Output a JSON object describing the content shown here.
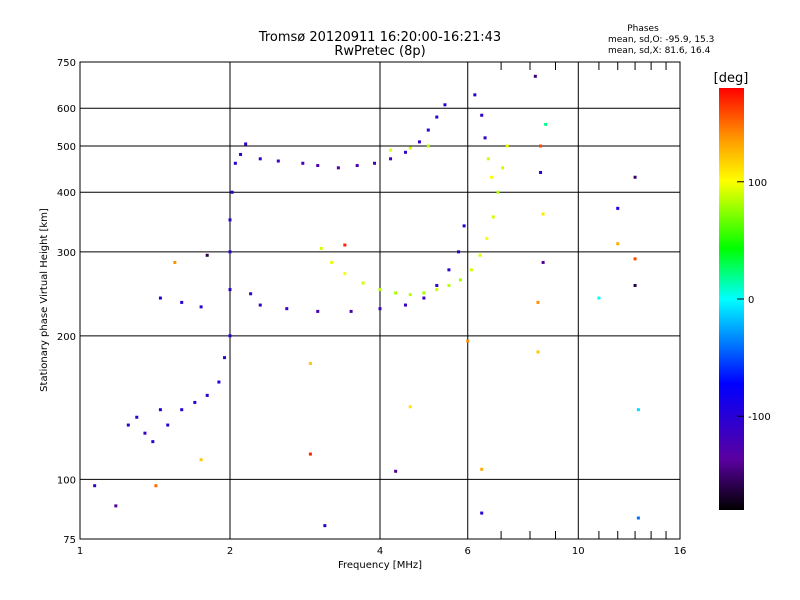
{
  "chart_data": {
    "type": "scatter",
    "title": "Tromsø 20120911 16:20:00-16:21:43",
    "subtitle": "RwPretec (8p)",
    "xlabel": "Frequency [MHz]",
    "ylabel": "Stationary phase Virtual Height [km]",
    "x_scale": "log",
    "y_scale": "log",
    "xlim": [
      1,
      16
    ],
    "ylim": [
      75,
      750
    ],
    "x_ticks": [
      1,
      2,
      4,
      6,
      10,
      16
    ],
    "y_ticks": [
      75,
      100,
      200,
      300,
      400,
      500,
      600,
      750
    ],
    "grid": true,
    "stats": {
      "title": "Phases",
      "line1": "mean, sd,O: -95.9, 15.3",
      "line2": "mean, sd,X:  81.6, 16.4"
    },
    "colorbar": {
      "label": "[deg]",
      "range": [
        -180,
        180
      ],
      "ticks": [
        100,
        0,
        -100
      ]
    },
    "series": [
      {
        "points": [
          [
            1.07,
            97,
            -110
          ],
          [
            1.25,
            130,
            -105
          ],
          [
            1.3,
            135,
            -100
          ],
          [
            1.35,
            125,
            -110
          ],
          [
            1.4,
            120,
            -105
          ],
          [
            1.45,
            140,
            -100
          ],
          [
            1.5,
            130,
            -105
          ],
          [
            1.6,
            140,
            -100
          ],
          [
            1.7,
            145,
            -95
          ],
          [
            1.8,
            150,
            -100
          ],
          [
            1.9,
            160,
            -100
          ],
          [
            1.95,
            180,
            -105
          ],
          [
            2.0,
            200,
            -100
          ],
          [
            2.0,
            250,
            -105
          ],
          [
            2.0,
            300,
            -100
          ],
          [
            2.0,
            350,
            -105
          ],
          [
            2.02,
            400,
            -100
          ],
          [
            2.05,
            460,
            -100
          ],
          [
            2.1,
            480,
            -105
          ],
          [
            2.15,
            505,
            -110
          ],
          [
            2.3,
            470,
            -110
          ],
          [
            2.5,
            465,
            -115
          ],
          [
            2.8,
            460,
            -120
          ],
          [
            3.0,
            455,
            -125
          ],
          [
            3.3,
            450,
            -130
          ],
          [
            3.6,
            455,
            -125
          ],
          [
            3.9,
            460,
            -120
          ],
          [
            4.2,
            470,
            -115
          ],
          [
            4.5,
            485,
            -110
          ],
          [
            4.8,
            510,
            -110
          ],
          [
            5.0,
            540,
            -105
          ],
          [
            5.2,
            575,
            -100
          ],
          [
            5.4,
            610,
            -100
          ],
          [
            6.2,
            640,
            -100
          ],
          [
            6.4,
            580,
            -105
          ],
          [
            6.5,
            520,
            -110
          ],
          [
            1.45,
            240,
            -100
          ],
          [
            1.6,
            235,
            -100
          ],
          [
            1.75,
            230,
            -105
          ],
          [
            2.2,
            245,
            -110
          ],
          [
            2.3,
            232,
            -110
          ],
          [
            2.6,
            228,
            -115
          ],
          [
            3.0,
            225,
            -120
          ],
          [
            3.5,
            225,
            -125
          ],
          [
            4.0,
            228,
            -120
          ],
          [
            4.5,
            232,
            -115
          ],
          [
            4.9,
            240,
            -110
          ],
          [
            5.2,
            255,
            -110
          ],
          [
            5.5,
            275,
            -105
          ],
          [
            5.75,
            300,
            -100
          ],
          [
            5.9,
            340,
            -100
          ]
        ]
      },
      {
        "points": [
          [
            3.05,
            305,
            90
          ],
          [
            3.2,
            285,
            95
          ],
          [
            3.4,
            270,
            100
          ],
          [
            3.7,
            258,
            90
          ],
          [
            4.0,
            250,
            85
          ],
          [
            4.3,
            246,
            80
          ],
          [
            4.6,
            244,
            85
          ],
          [
            4.9,
            246,
            80
          ],
          [
            5.2,
            250,
            90
          ],
          [
            5.5,
            255,
            85
          ],
          [
            5.8,
            262,
            80
          ],
          [
            6.1,
            275,
            90
          ],
          [
            6.35,
            295,
            95
          ],
          [
            6.55,
            320,
            100
          ],
          [
            6.75,
            355,
            90
          ],
          [
            6.9,
            400,
            85
          ],
          [
            7.05,
            450,
            90
          ],
          [
            7.2,
            500,
            95
          ],
          [
            5.0,
            500,
            85
          ],
          [
            4.6,
            495,
            90
          ],
          [
            4.2,
            490,
            95
          ],
          [
            6.7,
            430,
            100
          ],
          [
            6.6,
            470,
            90
          ]
        ]
      },
      {
        "points": [
          [
            1.18,
            88,
            -140
          ],
          [
            1.42,
            97,
            150
          ],
          [
            1.75,
            110,
            120
          ],
          [
            2.9,
            113,
            170
          ],
          [
            3.1,
            80,
            -100
          ],
          [
            4.3,
            104,
            -140
          ],
          [
            4.6,
            142,
            110
          ],
          [
            6.4,
            105,
            130
          ],
          [
            6.4,
            85,
            -100
          ],
          [
            8.3,
            185,
            120
          ],
          [
            8.3,
            235,
            140
          ],
          [
            8.5,
            285,
            -140
          ],
          [
            8.5,
            360,
            110
          ],
          [
            8.4,
            440,
            -100
          ],
          [
            8.4,
            500,
            160
          ],
          [
            8.6,
            555,
            20
          ],
          [
            8.2,
            700,
            -150
          ],
          [
            11.0,
            240,
            0
          ],
          [
            12.0,
            312,
            130
          ],
          [
            12.0,
            370,
            -90
          ],
          [
            13.0,
            255,
            -160
          ],
          [
            13.0,
            290,
            160
          ],
          [
            13.0,
            430,
            -150
          ],
          [
            13.2,
            140,
            -10
          ],
          [
            13.2,
            83,
            -40
          ],
          [
            2.9,
            175,
            120
          ],
          [
            1.55,
            285,
            140
          ],
          [
            1.8,
            295,
            -160
          ],
          [
            3.4,
            310,
            170
          ],
          [
            6.0,
            195,
            140
          ]
        ]
      }
    ]
  }
}
